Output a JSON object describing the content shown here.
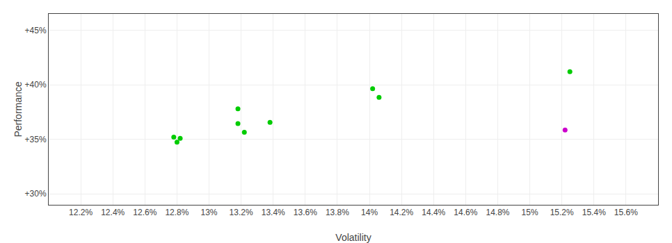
{
  "chart_data": {
    "type": "scatter",
    "xlabel": "Volatility",
    "ylabel": "Performance",
    "xlim": [
      12.0,
      15.8
    ],
    "ylim": [
      29.0,
      46.5
    ],
    "xticks": [
      {
        "value": 12.2,
        "label": "12.2%"
      },
      {
        "value": 12.4,
        "label": "12.4%"
      },
      {
        "value": 12.6,
        "label": "12.6%"
      },
      {
        "value": 12.8,
        "label": "12.8%"
      },
      {
        "value": 13.0,
        "label": "13%"
      },
      {
        "value": 13.2,
        "label": "13.2%"
      },
      {
        "value": 13.4,
        "label": "13.4%"
      },
      {
        "value": 13.6,
        "label": "13.6%"
      },
      {
        "value": 13.8,
        "label": "13.8%"
      },
      {
        "value": 14.0,
        "label": "14%"
      },
      {
        "value": 14.2,
        "label": "14.2%"
      },
      {
        "value": 14.4,
        "label": "14.4%"
      },
      {
        "value": 14.6,
        "label": "14.6%"
      },
      {
        "value": 14.8,
        "label": "14.8%"
      },
      {
        "value": 15.0,
        "label": "15%"
      },
      {
        "value": 15.2,
        "label": "15.2%"
      },
      {
        "value": 15.4,
        "label": "15.4%"
      },
      {
        "value": 15.6,
        "label": "15.6%"
      }
    ],
    "yticks": [
      {
        "value": 30.0,
        "label": "+30%"
      },
      {
        "value": 35.0,
        "label": "+35%"
      },
      {
        "value": 40.0,
        "label": "+40%"
      },
      {
        "value": 45.0,
        "label": "+45%"
      }
    ],
    "grid": true,
    "series": [
      {
        "color": "#00cc00",
        "x": [
          12.78,
          12.82,
          12.8,
          13.18,
          13.18,
          13.22,
          13.38,
          14.02,
          14.06,
          15.25
        ],
        "values": [
          35.2,
          35.1,
          34.75,
          37.8,
          36.45,
          35.65,
          36.55,
          39.65,
          38.85,
          41.2
        ]
      },
      {
        "color": "#cc00cc",
        "x": [
          15.22
        ],
        "values": [
          35.85
        ]
      }
    ]
  }
}
